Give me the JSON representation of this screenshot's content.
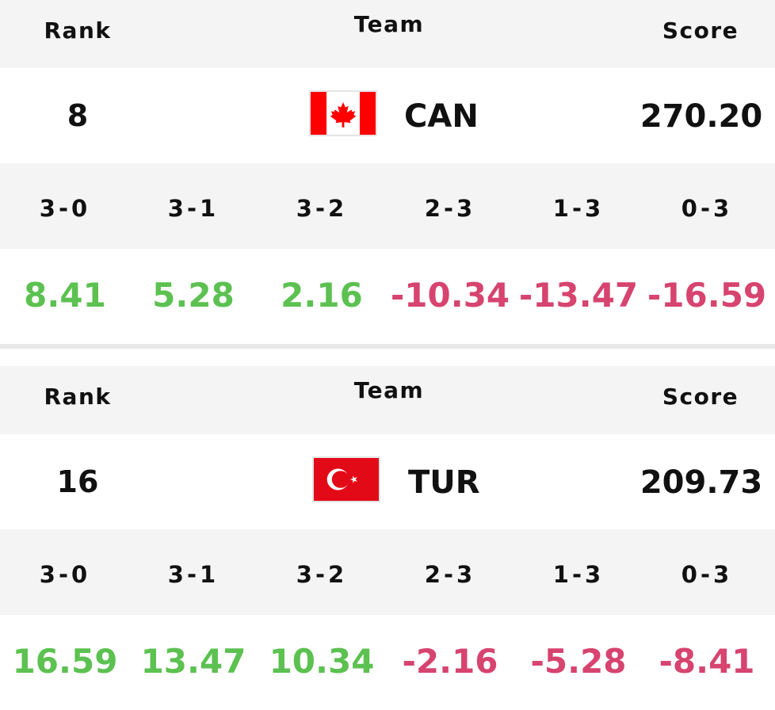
{
  "headers": {
    "rank": "Rank",
    "team": "Team",
    "score": "Score"
  },
  "outcomes": [
    "3-0",
    "3-1",
    "3-2",
    "2-3",
    "1-3",
    "0-3"
  ],
  "colors": {
    "positive": "#5cc150",
    "negative": "#d6446f",
    "band": "#f4f4f4"
  },
  "teams": [
    {
      "rank": "8",
      "code": "CAN",
      "flag_icon": "canada-flag-icon",
      "score": "270.20",
      "values": [
        "8.41",
        "5.28",
        "2.16",
        "-10.34",
        "-13.47",
        "-16.59"
      ]
    },
    {
      "rank": "16",
      "code": "TUR",
      "flag_icon": "turkey-flag-icon",
      "score": "209.73",
      "values": [
        "16.59",
        "13.47",
        "10.34",
        "-2.16",
        "-5.28",
        "-8.41"
      ]
    }
  ]
}
